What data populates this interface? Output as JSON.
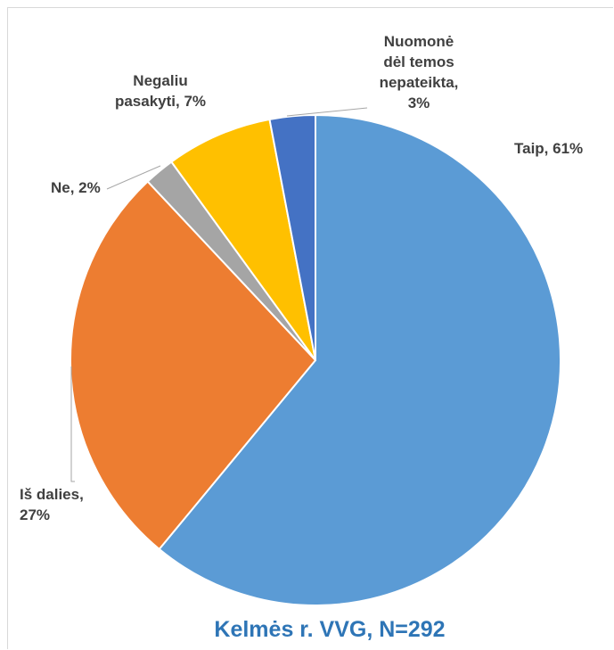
{
  "chart_data": {
    "type": "pie",
    "title": "Kelmės r. VVG, N=292",
    "start_angle_deg": 0,
    "direction": "clockwise",
    "slices": [
      {
        "label": "Taip",
        "label_lines": [
          "Taip, 61%"
        ],
        "value": 61,
        "color": "#5b9bd5"
      },
      {
        "label": "Iš dalies",
        "label_lines": [
          "Iš dalies,",
          "27%"
        ],
        "value": 27,
        "color": "#ed7d31"
      },
      {
        "label": "Ne",
        "label_lines": [
          "Ne, 2%"
        ],
        "value": 2,
        "color": "#a5a5a5"
      },
      {
        "label": "Negaliu pasakyti",
        "label_lines": [
          "Negaliu",
          "pasakyti, 7%"
        ],
        "value": 7,
        "color": "#ffc000"
      },
      {
        "label": "Nuomonė dėl temos nepateikta",
        "label_lines": [
          "Nuomonė",
          "dėl temos",
          "nepateikta,",
          "3%"
        ],
        "value": 3,
        "color": "#4472c4"
      }
    ],
    "leader_color": "#a6a6a6"
  }
}
